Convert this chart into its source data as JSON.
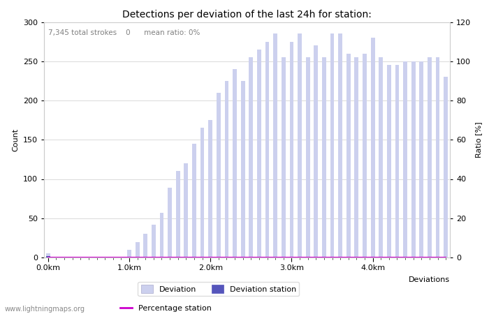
{
  "title": "Detections per deviation of the last 24h for station:",
  "subtitle": "7,345 total strokes    0      mean ratio: 0%",
  "xlabel": "Deviations",
  "ylabel_left": "Count",
  "ylabel_right": "Ratio [%]",
  "ylim_left": [
    0,
    300
  ],
  "ylim_right": [
    0,
    120
  ],
  "yticks_left": [
    0,
    50,
    100,
    150,
    200,
    250,
    300
  ],
  "yticks_right": [
    0,
    20,
    40,
    60,
    80,
    100,
    120
  ],
  "bar_color_light": "#ccd0ee",
  "bar_color_dark": "#5555bb",
  "line_color": "#cc00cc",
  "background_color": "#ffffff",
  "grid_color": "#cccccc",
  "watermark": "www.lightningmaps.org",
  "x_tick_labels": [
    "0.0km",
    "1.0km",
    "2.0km",
    "3.0km",
    "4.0km"
  ],
  "x_tick_positions": [
    0,
    10,
    20,
    30,
    40
  ],
  "bar_values": [
    5,
    1,
    1,
    1,
    1,
    1,
    1,
    1,
    1,
    1,
    10,
    20,
    30,
    42,
    57,
    89,
    110,
    120,
    145,
    165,
    175,
    210,
    225,
    240,
    225,
    255,
    265,
    275,
    285,
    255,
    275,
    285,
    255,
    270,
    255,
    285,
    285,
    260,
    255,
    260,
    280,
    255,
    245,
    245,
    250,
    250,
    250,
    255,
    255,
    230
  ],
  "station_bar_values": [
    2,
    0,
    0,
    0,
    0,
    0,
    0,
    0,
    0,
    0,
    0,
    0,
    0,
    0,
    0,
    0,
    0,
    0,
    0,
    0,
    0,
    0,
    0,
    0,
    0,
    0,
    0,
    0,
    0,
    0,
    0,
    0,
    0,
    0,
    0,
    0,
    0,
    0,
    0,
    0,
    0,
    0,
    0,
    0,
    0,
    0,
    0,
    0,
    0,
    0
  ],
  "percentage_values": [
    0,
    0,
    0,
    0,
    0,
    0,
    0,
    0,
    0,
    0,
    0,
    0,
    0,
    0,
    0,
    0,
    0,
    0,
    0,
    0,
    0,
    0,
    0,
    0,
    0,
    0,
    0,
    0,
    0,
    0,
    0,
    0,
    0,
    0,
    0,
    0,
    0,
    0,
    0,
    0,
    0,
    0,
    0,
    0,
    0,
    0,
    0,
    0,
    0,
    0
  ],
  "legend_deviation_label": "Deviation",
  "legend_deviation_station_label": "Deviation station",
  "legend_percentage_label": "Percentage station",
  "title_fontsize": 10,
  "label_fontsize": 8,
  "tick_fontsize": 8,
  "subtitle_fontsize": 7.5
}
